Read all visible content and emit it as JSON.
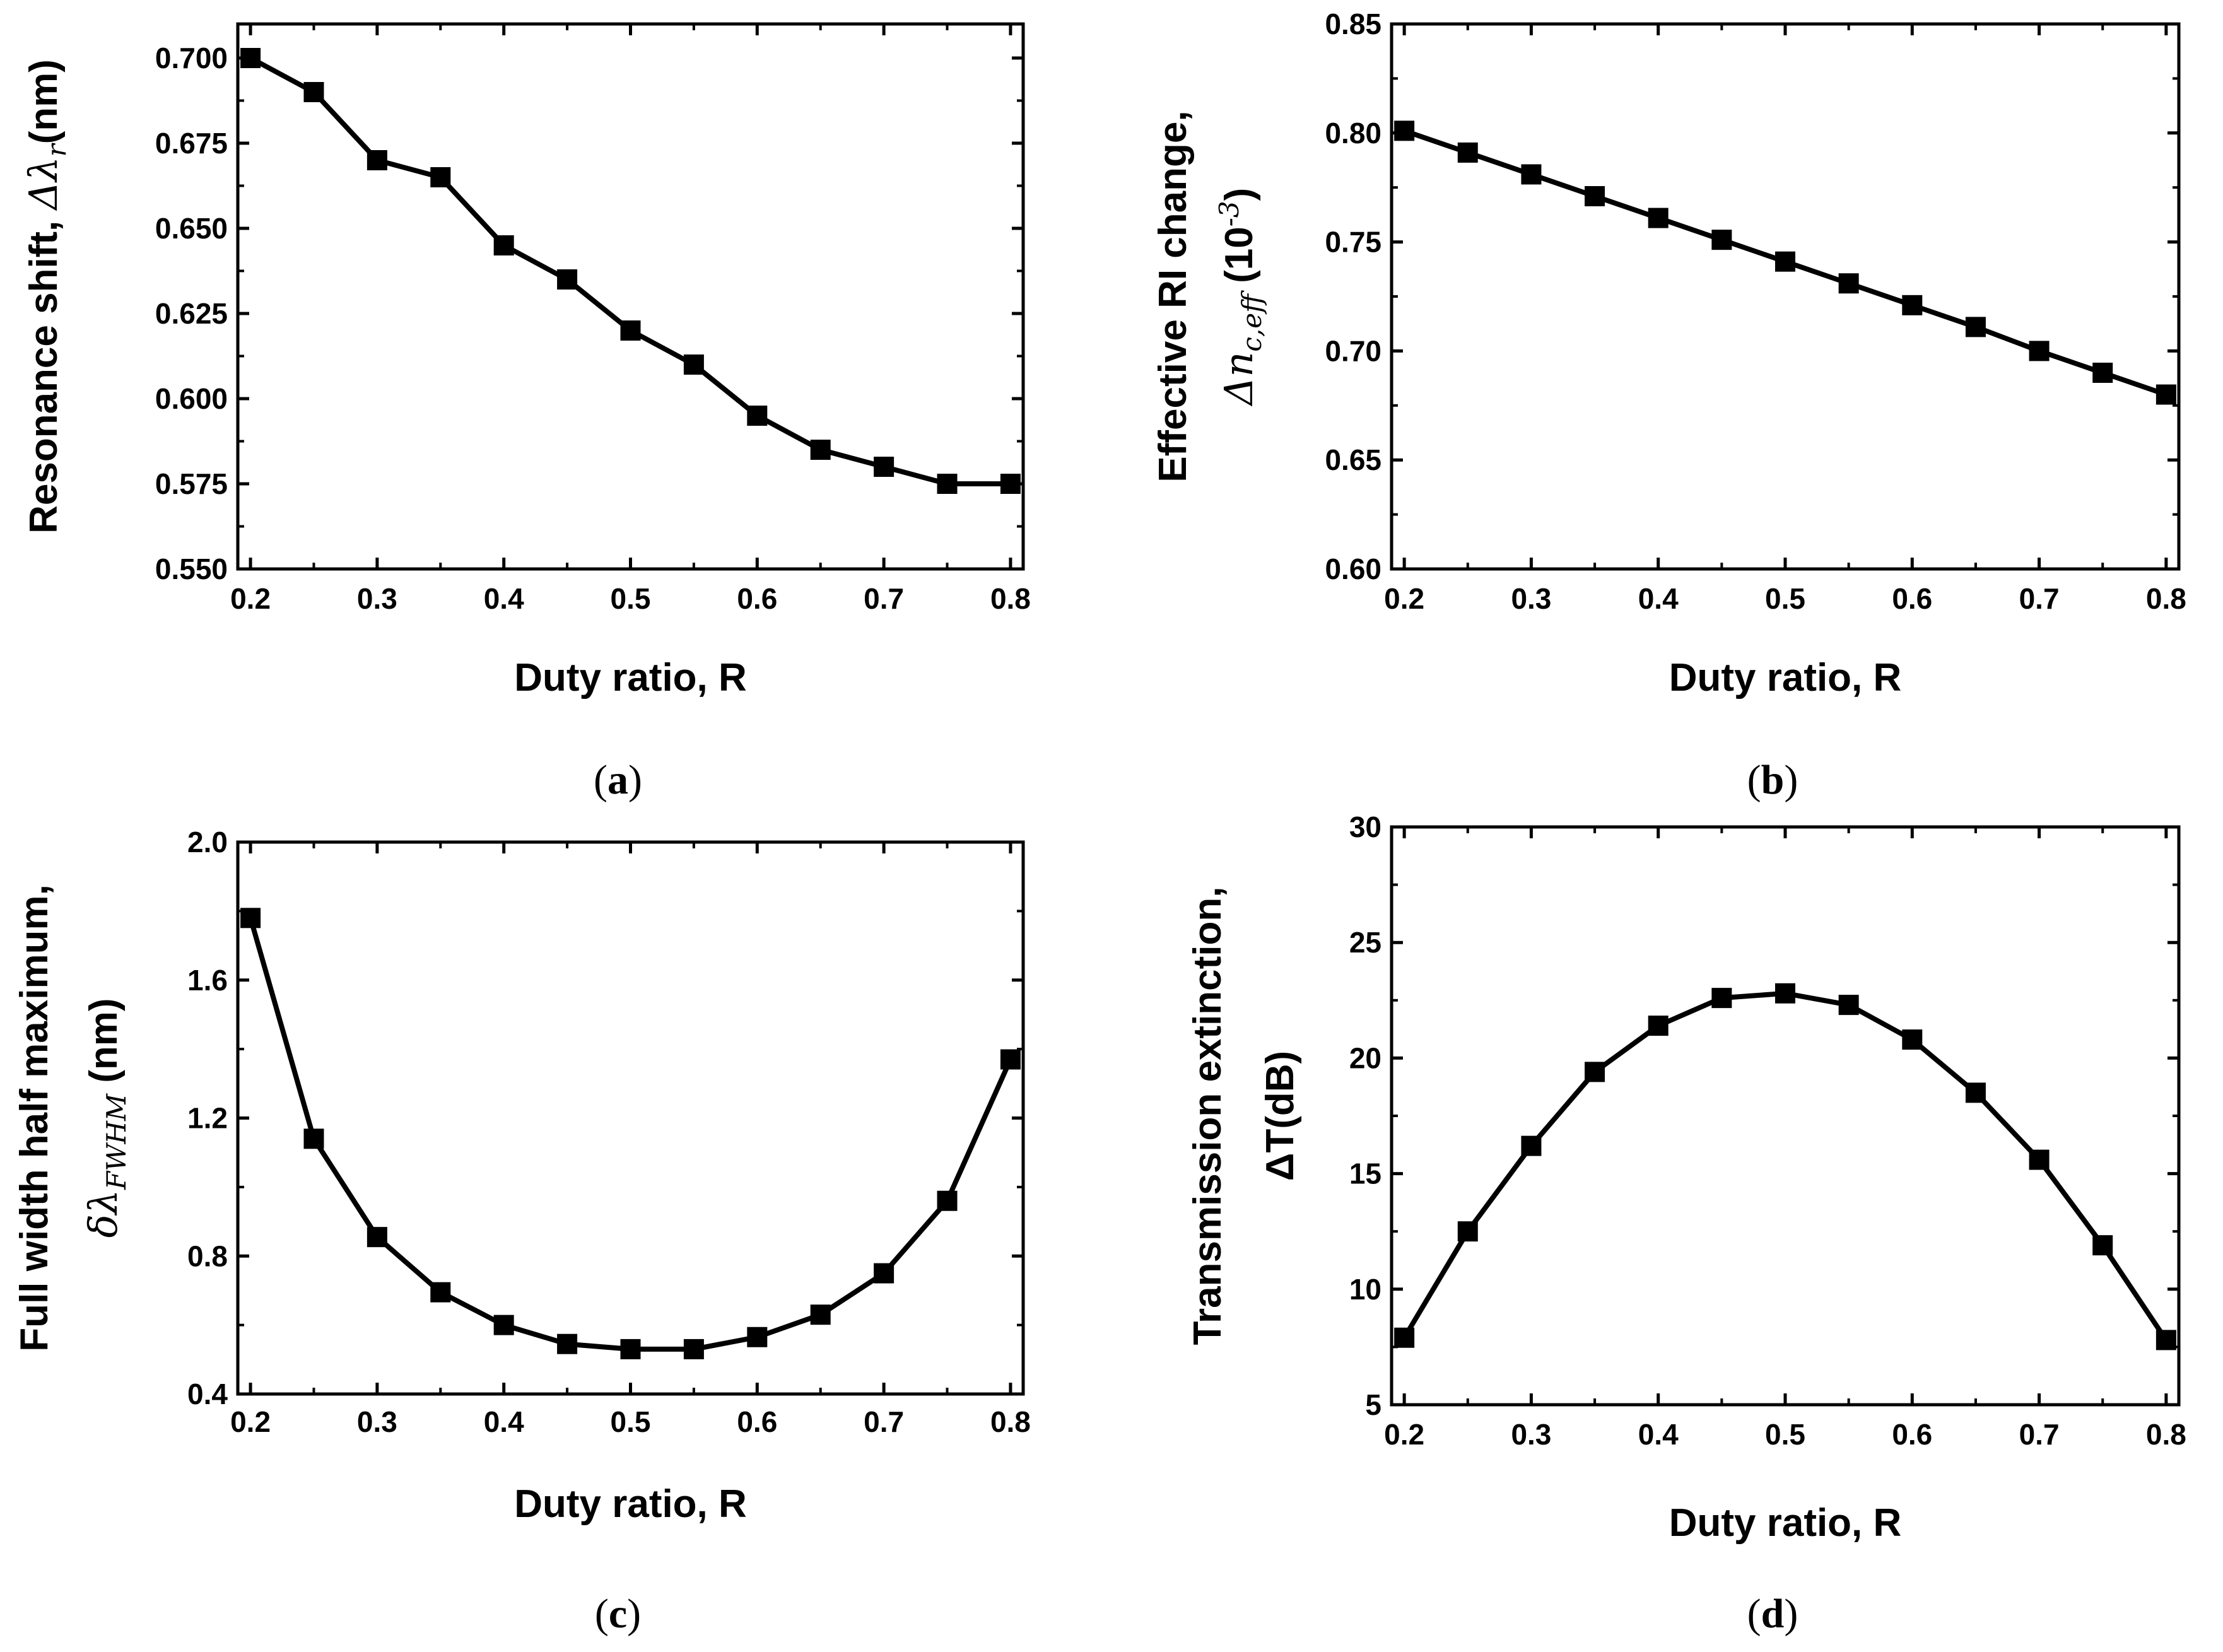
{
  "chart_data": [
    {
      "id": "a",
      "type": "line",
      "panel_label": "(a)",
      "panel_letter": "a",
      "xlabel": "Duty ratio, R",
      "ylabel_text": "Resonance shift, ",
      "ylabel_math": "Δλ",
      "ylabel_sub": "r",
      "ylabel_tail": "(nm)",
      "ylabel_line2": "",
      "xlim": [
        0.19,
        0.81
      ],
      "ylim": [
        0.55,
        0.71
      ],
      "xticks": [
        0.2,
        0.3,
        0.4,
        0.5,
        0.6,
        0.7,
        0.8
      ],
      "xtick_labels": [
        "0.2",
        "0.3",
        "0.4",
        "0.5",
        "0.6",
        "0.7",
        "0.8"
      ],
      "yticks": [
        0.55,
        0.575,
        0.6,
        0.625,
        0.65,
        0.675,
        0.7
      ],
      "ytick_labels": [
        "0.550",
        "0.575",
        "0.600",
        "0.625",
        "0.650",
        "0.675",
        "0.700"
      ],
      "x": [
        0.2,
        0.25,
        0.3,
        0.35,
        0.4,
        0.45,
        0.5,
        0.55,
        0.6,
        0.65,
        0.7,
        0.75,
        0.8
      ],
      "y": [
        0.7,
        0.69,
        0.67,
        0.665,
        0.645,
        0.635,
        0.62,
        0.61,
        0.595,
        0.585,
        0.58,
        0.575,
        0.575
      ]
    },
    {
      "id": "b",
      "type": "line",
      "panel_label": "(b)",
      "panel_letter": "b",
      "xlabel": "Duty ratio, R",
      "ylabel_text": "Effective RI change,",
      "ylabel_line2_math": "Δn",
      "ylabel_line2_sub": "c,eff",
      "ylabel_line2_tail": " (10",
      "ylabel_line2_sup": "-3",
      "ylabel_line2_close": ")",
      "xlim": [
        0.19,
        0.81
      ],
      "ylim": [
        0.6,
        0.85
      ],
      "xticks": [
        0.2,
        0.3,
        0.4,
        0.5,
        0.6,
        0.7,
        0.8
      ],
      "xtick_labels": [
        "0.2",
        "0.3",
        "0.4",
        "0.5",
        "0.6",
        "0.7",
        "0.8"
      ],
      "yticks": [
        0.6,
        0.65,
        0.7,
        0.75,
        0.8,
        0.85
      ],
      "ytick_labels": [
        "0.60",
        "0.65",
        "0.70",
        "0.75",
        "0.80",
        "0.85"
      ],
      "x": [
        0.2,
        0.25,
        0.3,
        0.35,
        0.4,
        0.45,
        0.5,
        0.55,
        0.6,
        0.65,
        0.7,
        0.75,
        0.8
      ],
      "y": [
        0.801,
        0.791,
        0.781,
        0.771,
        0.761,
        0.751,
        0.741,
        0.731,
        0.721,
        0.711,
        0.7,
        0.69,
        0.68
      ]
    },
    {
      "id": "c",
      "type": "line",
      "panel_label": "(c)",
      "panel_letter": "c",
      "xlabel": "Duty ratio, R",
      "ylabel_text": "Full width half maximum,",
      "ylabel_line2_math": "δλ",
      "ylabel_line2_sub": "FWHM",
      "ylabel_line2_tail": " (nm)",
      "xlim": [
        0.19,
        0.81
      ],
      "ylim": [
        0.4,
        2.0
      ],
      "xticks": [
        0.2,
        0.3,
        0.4,
        0.5,
        0.6,
        0.7,
        0.8
      ],
      "xtick_labels": [
        "0.2",
        "0.3",
        "0.4",
        "0.5",
        "0.6",
        "0.7",
        "0.8"
      ],
      "yticks": [
        0.4,
        0.8,
        1.2,
        1.6,
        2.0
      ],
      "ytick_labels": [
        "0.4",
        "0.8",
        "1.2",
        "1.6",
        "2.0"
      ],
      "x": [
        0.2,
        0.25,
        0.3,
        0.35,
        0.4,
        0.45,
        0.5,
        0.55,
        0.6,
        0.65,
        0.7,
        0.75,
        0.8
      ],
      "y": [
        1.78,
        1.14,
        0.855,
        0.695,
        0.6,
        0.545,
        0.53,
        0.53,
        0.565,
        0.63,
        0.75,
        0.96,
        1.37
      ]
    },
    {
      "id": "d",
      "type": "line",
      "panel_label": "(d)",
      "panel_letter": "d",
      "xlabel": "Duty ratio, R",
      "ylabel_text": "Transmission extinction,",
      "ylabel_line2_text": "ΔT(dB)",
      "xlim": [
        0.19,
        0.81
      ],
      "ylim": [
        5,
        30
      ],
      "xticks": [
        0.2,
        0.3,
        0.4,
        0.5,
        0.6,
        0.7,
        0.8
      ],
      "xtick_labels": [
        "0.2",
        "0.3",
        "0.4",
        "0.5",
        "0.6",
        "0.7",
        "0.8"
      ],
      "yticks": [
        5,
        10,
        15,
        20,
        25,
        30
      ],
      "ytick_labels": [
        "5",
        "10",
        "15",
        "20",
        "25",
        "30"
      ],
      "x": [
        0.2,
        0.25,
        0.3,
        0.35,
        0.4,
        0.45,
        0.5,
        0.55,
        0.6,
        0.65,
        0.7,
        0.75,
        0.8
      ],
      "y": [
        7.9,
        12.5,
        16.2,
        19.4,
        21.4,
        22.6,
        22.8,
        22.3,
        20.8,
        18.5,
        15.6,
        11.9,
        7.8
      ]
    }
  ]
}
